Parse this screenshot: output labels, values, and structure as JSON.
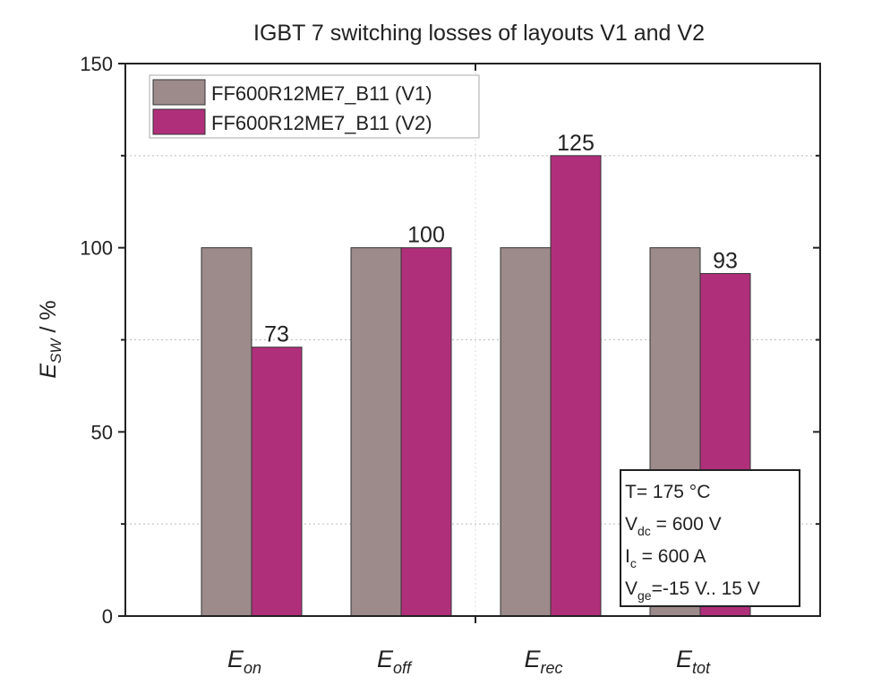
{
  "chart_data": {
    "type": "bar",
    "title": "IGBT 7 switching losses of layouts V1 and V2",
    "ylabel_main": "E",
    "ylabel_sub": "SW",
    "ylabel_unit": " / %",
    "ylim": [
      0,
      150
    ],
    "yticks": [
      0,
      50,
      100,
      150
    ],
    "minor_grid": [
      25,
      75,
      125
    ],
    "grid": "dotted minor",
    "legend_position": "top-left",
    "categories": [
      {
        "main": "E",
        "sub": "on"
      },
      {
        "main": "E",
        "sub": "off"
      },
      {
        "main": "E",
        "sub": "rec"
      },
      {
        "main": "E",
        "sub": "tot"
      }
    ],
    "series": [
      {
        "name": "FF600R12ME7_B11 (V1)",
        "color": "#9d8b8b",
        "values": [
          100,
          100,
          100,
          100
        ],
        "labels": [
          "",
          "",
          "",
          ""
        ]
      },
      {
        "name": "FF600R12ME7_B11 (V2)",
        "color": "#b02f7b",
        "values": [
          73,
          100,
          125,
          93
        ],
        "labels": [
          "73",
          "100",
          "125",
          "93"
        ]
      }
    ],
    "annotation": [
      {
        "main": "T= 175 °C",
        "sub": "",
        "rest": ""
      },
      {
        "main": "V",
        "sub": "dc",
        "rest": " = 600 V"
      },
      {
        "main": "I",
        "sub": "c",
        "rest": " = 600 A"
      },
      {
        "main": "V",
        "sub": "ge",
        "rest": "=-15 V.. 15 V"
      }
    ]
  }
}
